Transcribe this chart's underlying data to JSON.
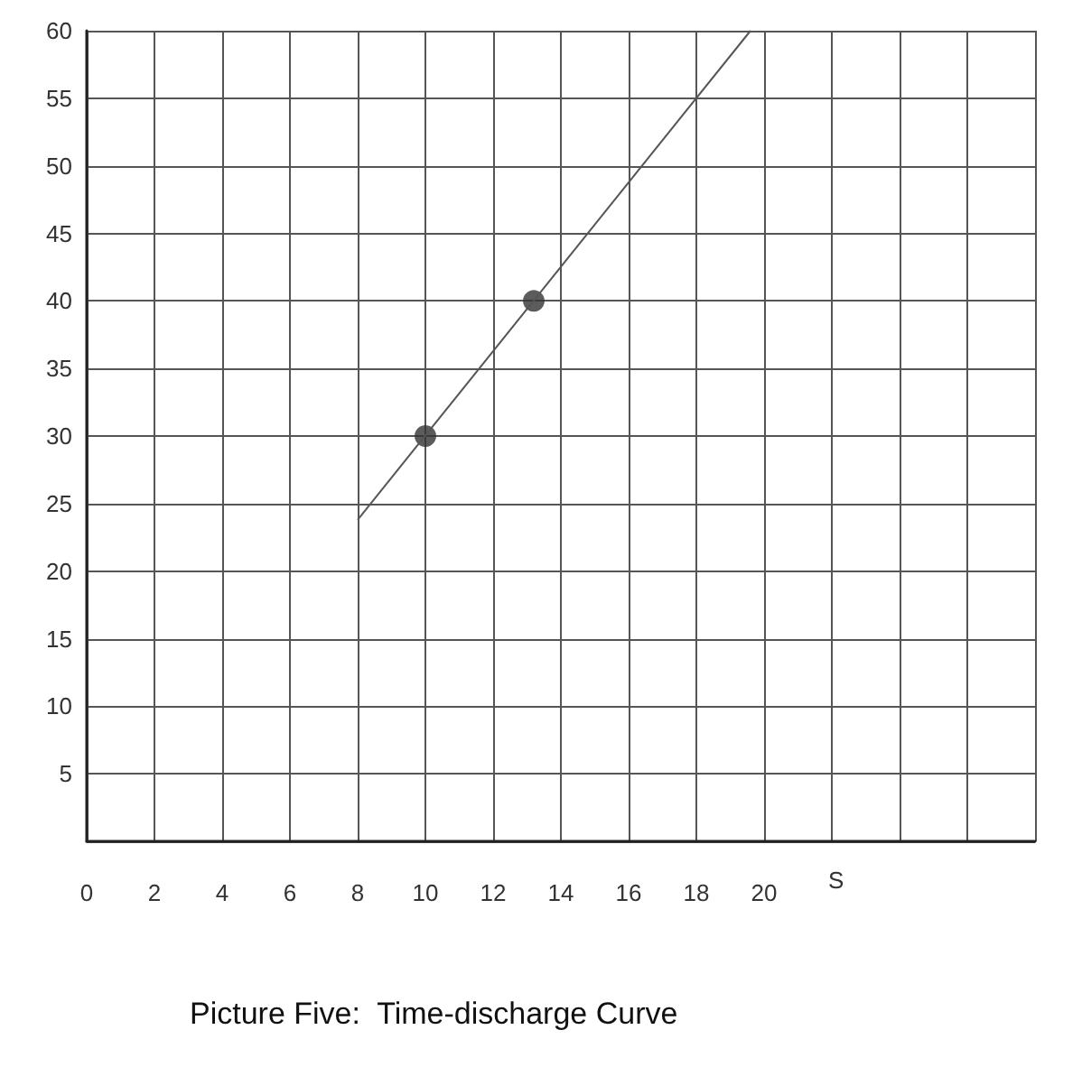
{
  "chart_data": {
    "type": "scatter",
    "title": "Picture Five:  Time-discharge Curve",
    "xlabel": "S",
    "xlim": [
      0,
      28
    ],
    "xticks": [
      0,
      2,
      4,
      6,
      8,
      10,
      12,
      14,
      16,
      18,
      20,
      {
        "value": 22,
        "label": null
      },
      {
        "value": 24,
        "label": null
      },
      {
        "value": 26,
        "label": null
      },
      {
        "value": 28,
        "label": null
      }
    ],
    "ylim": [
      0,
      60
    ],
    "yticks": [
      {
        "value": 0,
        "label": null
      },
      5,
      10,
      15,
      20,
      25,
      30,
      35,
      40,
      45,
      50,
      55,
      60
    ],
    "grid": true,
    "marker": "circle",
    "series": [
      {
        "color": "#333333",
        "x": [
          10,
          13.2
        ],
        "values": [
          30,
          40
        ]
      },
      {
        "type": "line",
        "color": "#555555",
        "marker": "none",
        "x": [
          8,
          19.6
        ],
        "values": [
          23.8,
          60
        ]
      }
    ]
  }
}
